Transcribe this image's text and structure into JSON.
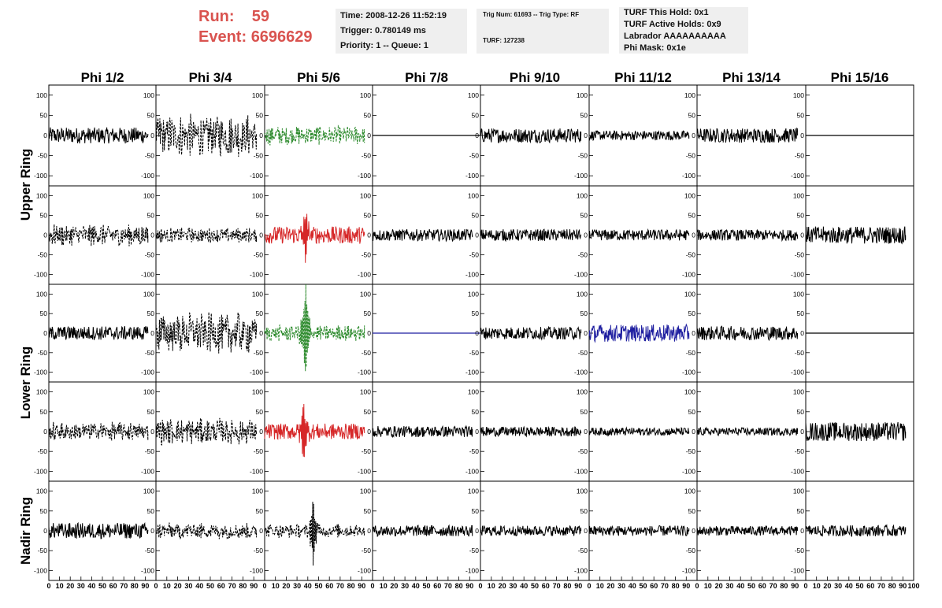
{
  "header": {
    "run_label": "Run:",
    "run_value": "59",
    "event_label": "Event:",
    "event_value": "6696629",
    "time": "Time: 2008-12-26 11:52:19",
    "trigger": "Trigger: 0.780149 ms",
    "priority": "Priority: 1 -- Queue: 1",
    "trig_num": "Trig Num: 61693 -- Trig Type: RF",
    "turf_id": "TURF: 127238",
    "turf_hold": "TURF This Hold: 0x1",
    "turf_active": "TURF Active Holds: 0x9",
    "labrador": "Labrador AAAAAAAAAA",
    "phi_mask": "Phi Mask: 0x1e",
    "accent_color": "#d9534f"
  },
  "chart_data": {
    "type": "line",
    "title": "",
    "columns": [
      "Phi 1/2",
      "Phi 3/4",
      "Phi 5/6",
      "Phi 7/8",
      "Phi 9/10",
      "Phi 11/12",
      "Phi 13/14",
      "Phi 15/16"
    ],
    "ring_labels": [
      "Upper Ring",
      "Lower Ring",
      "Nadir Ring"
    ],
    "rows": 5,
    "x_ticks": [
      "0",
      "10",
      "20",
      "30",
      "40",
      "50",
      "60",
      "70",
      "80",
      "90",
      "100"
    ],
    "xlim": [
      0,
      100
    ],
    "y_ticks": [
      "100",
      "50",
      "0",
      "-50",
      "-100"
    ],
    "ylim": [
      -125,
      125
    ],
    "note_values": "Waveform samples are noise-like traces; amplitudes summarised per panel.",
    "panels": [
      [
        {
          "style": "solid",
          "color": "#000000",
          "amplitude": 20,
          "spike_x": null,
          "spike_y": 0
        },
        {
          "style": "dashed",
          "color": "#000000",
          "amplitude": 55,
          "spike_x": null,
          "spike_y": 0
        },
        {
          "style": "dashed",
          "color": "#2e8b2e",
          "amplitude": 25,
          "spike_x": null,
          "spike_y": 0
        },
        {
          "style": "flat",
          "color": "#000000",
          "amplitude": 0,
          "spike_x": null,
          "spike_y": 0
        },
        {
          "style": "solid",
          "color": "#000000",
          "amplitude": 18,
          "spike_x": null,
          "spike_y": 0
        },
        {
          "style": "solid",
          "color": "#000000",
          "amplitude": 12,
          "spike_x": null,
          "spike_y": 0
        },
        {
          "style": "solid",
          "color": "#000000",
          "amplitude": 18,
          "spike_x": null,
          "spike_y": 0
        },
        {
          "style": "flat",
          "color": "#000000",
          "amplitude": 0,
          "spike_x": null,
          "spike_y": 0
        }
      ],
      [
        {
          "style": "dashed",
          "color": "#000000",
          "amplitude": 30,
          "spike_x": null,
          "spike_y": 0
        },
        {
          "style": "dashed",
          "color": "#000000",
          "amplitude": 20,
          "spike_x": null,
          "spike_y": 0
        },
        {
          "style": "solid",
          "color": "#d62728",
          "amplitude": 22,
          "spike_x": 38,
          "spike_y": 60
        },
        {
          "style": "solid",
          "color": "#000000",
          "amplitude": 15,
          "spike_x": null,
          "spike_y": 0
        },
        {
          "style": "solid",
          "color": "#000000",
          "amplitude": 15,
          "spike_x": null,
          "spike_y": 0
        },
        {
          "style": "solid",
          "color": "#000000",
          "amplitude": 14,
          "spike_x": null,
          "spike_y": 0
        },
        {
          "style": "solid",
          "color": "#000000",
          "amplitude": 14,
          "spike_x": null,
          "spike_y": 0
        },
        {
          "style": "solid",
          "color": "#000000",
          "amplitude": 22,
          "spike_x": null,
          "spike_y": 0
        }
      ],
      [
        {
          "style": "solid",
          "color": "#000000",
          "amplitude": 18,
          "spike_x": null,
          "spike_y": 0
        },
        {
          "style": "dashed",
          "color": "#000000",
          "amplitude": 55,
          "spike_x": null,
          "spike_y": 0
        },
        {
          "style": "dashed",
          "color": "#2e8b2e",
          "amplitude": 22,
          "spike_x": 38,
          "spike_y": 120
        },
        {
          "style": "flat",
          "color": "#1f1fa0",
          "amplitude": 0,
          "spike_x": null,
          "spike_y": 0
        },
        {
          "style": "solid",
          "color": "#000000",
          "amplitude": 16,
          "spike_x": null,
          "spike_y": 0
        },
        {
          "style": "solid",
          "color": "#1f1fa0",
          "amplitude": 22,
          "spike_x": null,
          "spike_y": 0
        },
        {
          "style": "solid",
          "color": "#000000",
          "amplitude": 18,
          "spike_x": null,
          "spike_y": 0
        },
        {
          "style": "flat",
          "color": "#000000",
          "amplitude": 0,
          "spike_x": null,
          "spike_y": 0
        }
      ],
      [
        {
          "style": "dashed",
          "color": "#000000",
          "amplitude": 25,
          "spike_x": null,
          "spike_y": 0
        },
        {
          "style": "dashed",
          "color": "#000000",
          "amplitude": 35,
          "spike_x": null,
          "spike_y": 0
        },
        {
          "style": "solid",
          "color": "#d62728",
          "amplitude": 20,
          "spike_x": 36,
          "spike_y": 65
        },
        {
          "style": "solid",
          "color": "#000000",
          "amplitude": 14,
          "spike_x": null,
          "spike_y": 0
        },
        {
          "style": "solid",
          "color": "#000000",
          "amplitude": 12,
          "spike_x": null,
          "spike_y": 0
        },
        {
          "style": "solid",
          "color": "#000000",
          "amplitude": 10,
          "spike_x": null,
          "spike_y": 0
        },
        {
          "style": "solid",
          "color": "#000000",
          "amplitude": 10,
          "spike_x": null,
          "spike_y": 0
        },
        {
          "style": "solid",
          "color": "#000000",
          "amplitude": 24,
          "spike_x": null,
          "spike_y": 0
        }
      ],
      [
        {
          "style": "solid",
          "color": "#000000",
          "amplitude": 20,
          "spike_x": null,
          "spike_y": 0
        },
        {
          "style": "dashed",
          "color": "#000000",
          "amplitude": 22,
          "spike_x": null,
          "spike_y": 0
        },
        {
          "style": "dashed",
          "color": "#000000",
          "amplitude": 18,
          "spike_x": 45,
          "spike_y": 80
        },
        {
          "style": "solid",
          "color": "#000000",
          "amplitude": 14,
          "spike_x": null,
          "spike_y": 0
        },
        {
          "style": "solid",
          "color": "#000000",
          "amplitude": 13,
          "spike_x": null,
          "spike_y": 0
        },
        {
          "style": "solid",
          "color": "#000000",
          "amplitude": 13,
          "spike_x": null,
          "spike_y": 0
        },
        {
          "style": "solid",
          "color": "#000000",
          "amplitude": 12,
          "spike_x": null,
          "spike_y": 0
        },
        {
          "style": "solid",
          "color": "#000000",
          "amplitude": 14,
          "spike_x": null,
          "spike_y": 0
        }
      ]
    ]
  }
}
